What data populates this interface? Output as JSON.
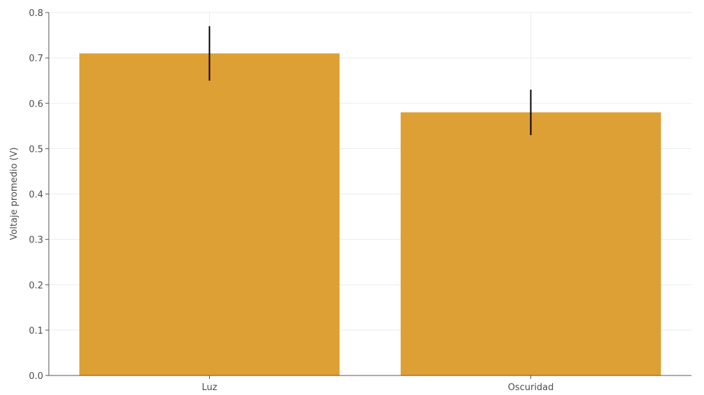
{
  "chart_data": {
    "type": "bar",
    "title": "",
    "xlabel": "",
    "ylabel": "Voltaje promedio (V)",
    "categories": [
      "Luz",
      "Oscuridad"
    ],
    "values": [
      0.71,
      0.58
    ],
    "error": [
      0.06,
      0.05
    ],
    "ylim": [
      0,
      0.8
    ],
    "yticks": [
      "0.0",
      "0.1",
      "0.2",
      "0.3",
      "0.4",
      "0.5",
      "0.6",
      "0.7",
      "0.8"
    ],
    "grid": true,
    "bar_color": "#dda035",
    "errorbar_color": "#000000"
  }
}
